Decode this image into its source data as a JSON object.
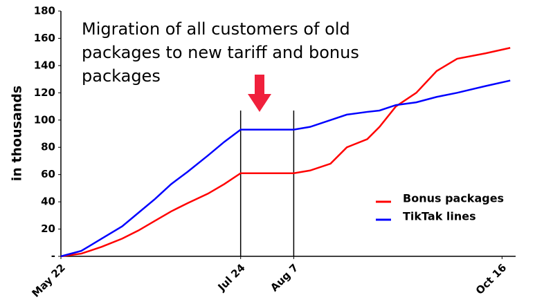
{
  "chart_data": {
    "type": "line",
    "ylabel": "in thousands",
    "annotation": [
      "Migration of all customers of old",
      "packages to new tariff and bonus",
      "packages"
    ],
    "x": [
      0,
      5,
      10,
      15,
      19,
      23,
      27,
      31,
      36,
      40,
      44,
      57,
      61,
      66,
      70,
      75,
      78,
      82,
      87,
      92,
      97,
      104,
      110
    ],
    "series": [
      {
        "name": "Bonus packages",
        "color": "#ff0000",
        "values": [
          0,
          2,
          7,
          13,
          19,
          26,
          33,
          39,
          46,
          53,
          61,
          61,
          63,
          68,
          80,
          86,
          95,
          110,
          120,
          136,
          145,
          149,
          153
        ]
      },
      {
        "name": "TikTak lines",
        "color": "#0000ff",
        "values": [
          0,
          4,
          13,
          22,
          32,
          42,
          53,
          62,
          74,
          84,
          93,
          93,
          95,
          100,
          104,
          106,
          107,
          111,
          113,
          117,
          120,
          125,
          129
        ]
      }
    ],
    "xlim": [
      0,
      112
    ],
    "xticks": [
      {
        "value": 0,
        "label": "May 22"
      },
      {
        "value": 44,
        "label": "Jul 24"
      },
      {
        "value": 57,
        "label": "Aug 7"
      },
      {
        "value": 108,
        "label": "Oct 16"
      }
    ],
    "ylim": [
      0,
      180
    ],
    "yticks": [
      {
        "value": 0,
        "label": "-"
      },
      20,
      40,
      60,
      80,
      100,
      120,
      140,
      160,
      180
    ],
    "legend": "lower right"
  }
}
